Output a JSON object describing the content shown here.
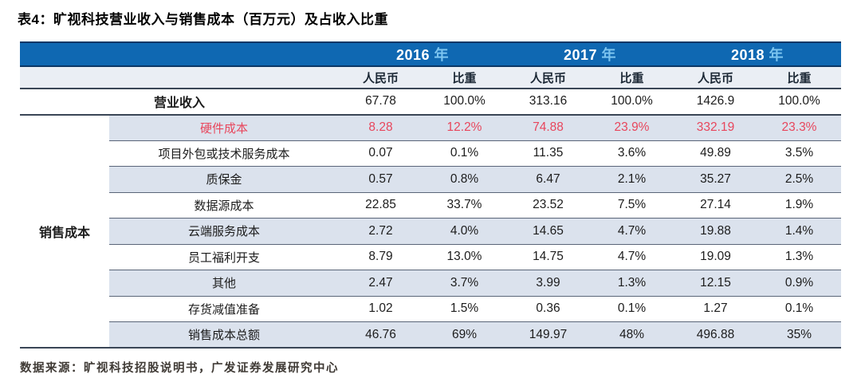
{
  "title": "表4：旷视科技营业收入与销售成本（百万元）及占收入比重",
  "table": {
    "years": [
      {
        "num": "2016",
        "suffix": "年"
      },
      {
        "num": "2017",
        "suffix": "年"
      },
      {
        "num": "2018",
        "suffix": "年"
      }
    ],
    "col_headers": [
      "人民币",
      "比重",
      "人民币",
      "比重",
      "人民币",
      "比重"
    ],
    "revenue_row": {
      "label": "营业收入",
      "values": [
        "67.78",
        "100.0%",
        "313.16",
        "100.0%",
        "1426.9",
        "100.0%"
      ]
    },
    "cost_group_label": "销售成本",
    "cost_rows": [
      {
        "label": "硬件成本",
        "highlight": true,
        "values": [
          "8.28",
          "12.2%",
          "74.88",
          "23.9%",
          "332.19",
          "23.3%"
        ]
      },
      {
        "label": "项目外包或技术服务成本",
        "highlight": false,
        "values": [
          "0.07",
          "0.1%",
          "11.35",
          "3.6%",
          "49.89",
          "3.5%"
        ]
      },
      {
        "label": "质保金",
        "highlight": false,
        "values": [
          "0.57",
          "0.8%",
          "6.47",
          "2.1%",
          "35.27",
          "2.5%"
        ]
      },
      {
        "label": "数据源成本",
        "highlight": false,
        "values": [
          "22.85",
          "33.7%",
          "23.52",
          "7.5%",
          "27.14",
          "1.9%"
        ]
      },
      {
        "label": "云端服务成本",
        "highlight": false,
        "values": [
          "2.72",
          "4.0%",
          "14.65",
          "4.7%",
          "19.88",
          "1.4%"
        ]
      },
      {
        "label": "员工福利开支",
        "highlight": false,
        "values": [
          "8.79",
          "13.0%",
          "14.75",
          "4.7%",
          "19.09",
          "1.3%"
        ]
      },
      {
        "label": "其他",
        "highlight": false,
        "values": [
          "2.47",
          "3.7%",
          "3.99",
          "1.3%",
          "12.15",
          "0.9%"
        ]
      },
      {
        "label": "存货减值准备",
        "highlight": false,
        "values": [
          "1.02",
          "1.5%",
          "0.36",
          "0.1%",
          "1.27",
          "0.1%"
        ]
      },
      {
        "label": "销售成本总额",
        "highlight": false,
        "values": [
          "46.76",
          "69%",
          "149.97",
          "48%",
          "496.88",
          "35%"
        ]
      }
    ]
  },
  "footer": "数据来源：旷视科技招股说明书，广发证券发展研究中心",
  "colors": {
    "header_bg": "#0f68b2",
    "header_year_suffix": "#7cc4ef",
    "row_shade": "#dbe2ed",
    "subheader_bg": "#eaeef4",
    "highlight_red": "#e8465c",
    "border_dark": "#3a4656",
    "border_light": "#5a6578"
  }
}
